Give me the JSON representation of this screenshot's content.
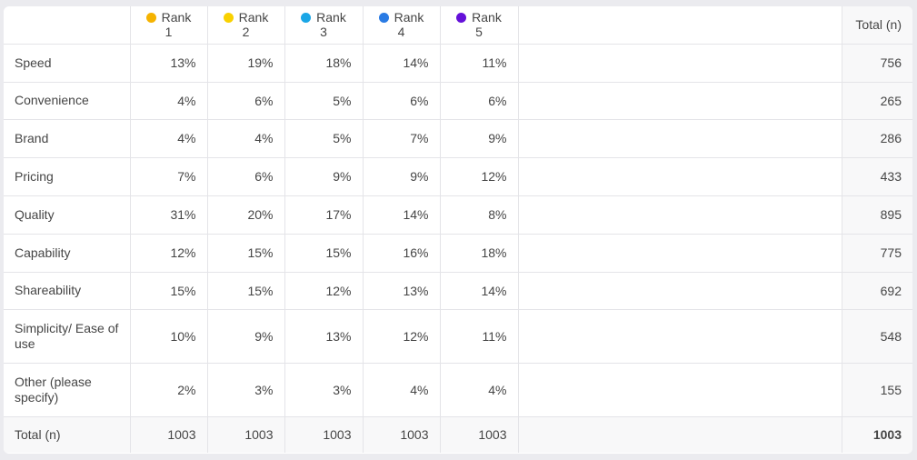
{
  "table": {
    "label_header": null,
    "rank_headers": [
      "Rank 1",
      "Rank 2",
      "Rank 3",
      "Rank 4",
      "Rank 5"
    ],
    "rank_colors": [
      "#f5b301",
      "#f9d100",
      "#1aa6e6",
      "#2a7be4",
      "#6410d9"
    ],
    "total_header": "Total (n)",
    "rows": [
      {
        "label": "Speed",
        "cells": [
          "13%",
          "19%",
          "18%",
          "14%",
          "11%"
        ],
        "total": "756"
      },
      {
        "label": "Convenience",
        "cells": [
          "4%",
          "6%",
          "5%",
          "6%",
          "6%"
        ],
        "total": "265"
      },
      {
        "label": "Brand",
        "cells": [
          "4%",
          "4%",
          "5%",
          "7%",
          "9%"
        ],
        "total": "286"
      },
      {
        "label": "Pricing",
        "cells": [
          "7%",
          "6%",
          "9%",
          "9%",
          "12%"
        ],
        "total": "433"
      },
      {
        "label": "Quality",
        "cells": [
          "31%",
          "20%",
          "17%",
          "14%",
          "8%"
        ],
        "total": "895"
      },
      {
        "label": "Capability",
        "cells": [
          "12%",
          "15%",
          "15%",
          "16%",
          "18%"
        ],
        "total": "775"
      },
      {
        "label": "Shareability",
        "cells": [
          "15%",
          "15%",
          "12%",
          "13%",
          "14%"
        ],
        "total": "692"
      },
      {
        "label": "Simplicity/ Ease of use",
        "cells": [
          "10%",
          "9%",
          "13%",
          "12%",
          "11%"
        ],
        "total": "548"
      },
      {
        "label": "Other (please specify)",
        "cells": [
          "2%",
          "3%",
          "3%",
          "4%",
          "4%"
        ],
        "total": "155"
      }
    ],
    "footer": {
      "label": "Total (n)",
      "cells": [
        "1003",
        "1003",
        "1003",
        "1003",
        "1003"
      ],
      "total": "1003"
    }
  }
}
